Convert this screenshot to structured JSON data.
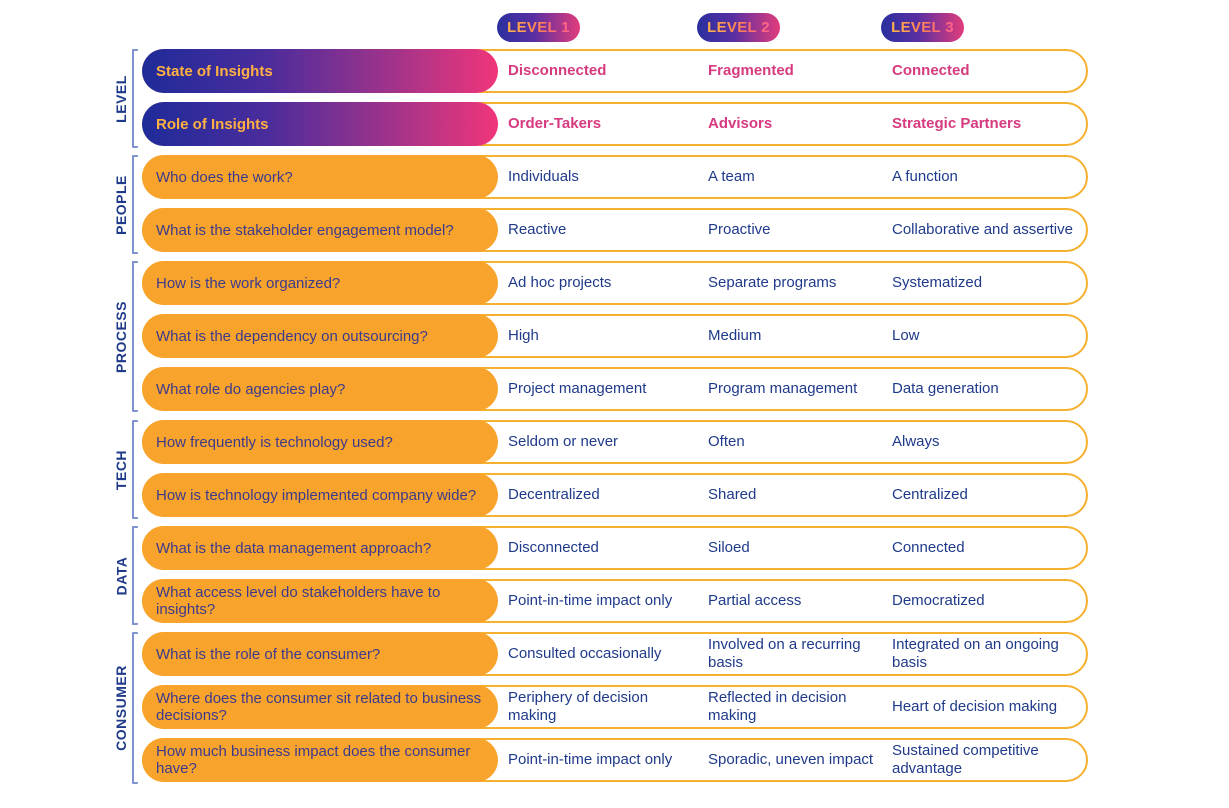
{
  "levels": [
    "LEVEL 1",
    "LEVEL 2",
    "LEVEL 3"
  ],
  "categories": {
    "level": "LEVEL",
    "people": "PEOPLE",
    "process": "PROCESS",
    "tech": "TECH",
    "data": "DATA",
    "consumer": "CONSUMER"
  },
  "rows": [
    {
      "q": "State of Insights",
      "l1": "Disconnected",
      "l2": "Fragmented",
      "l3": "Connected"
    },
    {
      "q": "Role of Insights",
      "l1": "Order-Takers",
      "l2": "Advisors",
      "l3": "Strategic Partners"
    },
    {
      "q": "Who does the work?",
      "l1": "Individuals",
      "l2": "A team",
      "l3": "A function"
    },
    {
      "q": "What is the stakeholder engagement model?",
      "l1": "Reactive",
      "l2": "Proactive",
      "l3": "Collaborative and assertive"
    },
    {
      "q": "How is the work organized?",
      "l1": "Ad hoc projects",
      "l2": "Separate programs",
      "l3": "Systematized"
    },
    {
      "q": "What is the dependency on outsourcing?",
      "l1": "High",
      "l2": "Medium",
      "l3": "Low"
    },
    {
      "q": "What role do agencies play?",
      "l1": "Project management",
      "l2": "Program management",
      "l3": "Data generation"
    },
    {
      "q": "How frequently is technology used?",
      "l1": "Seldom or never",
      "l2": "Often",
      "l3": "Always"
    },
    {
      "q": "How is technology implemented company wide?",
      "l1": "Decentralized",
      "l2": "Shared",
      "l3": "Centralized"
    },
    {
      "q": "What is the data management approach?",
      "l1": "Disconnected",
      "l2": "Siloed",
      "l3": "Connected"
    },
    {
      "q": "What access level do stakeholders have to insights?",
      "l1": "Point-in-time impact only",
      "l2": "Partial access",
      "l3": "Democratized"
    },
    {
      "q": "What is the role of the consumer?",
      "l1": "Consulted occasionally",
      "l2": "Involved on a recurring basis",
      "l3": "Integrated on an ongoing basis"
    },
    {
      "q": "Where does the consumer sit related to business decisions?",
      "l1": "Periphery of decision making",
      "l2": "Reflected in decision making",
      "l3": "Heart of decision making"
    },
    {
      "q": "How much business impact does the consumer have?",
      "l1": "Point-in-time impact only",
      "l2": "Sporadic, uneven impact",
      "l3": "Sustained competitive advantage"
    }
  ]
}
